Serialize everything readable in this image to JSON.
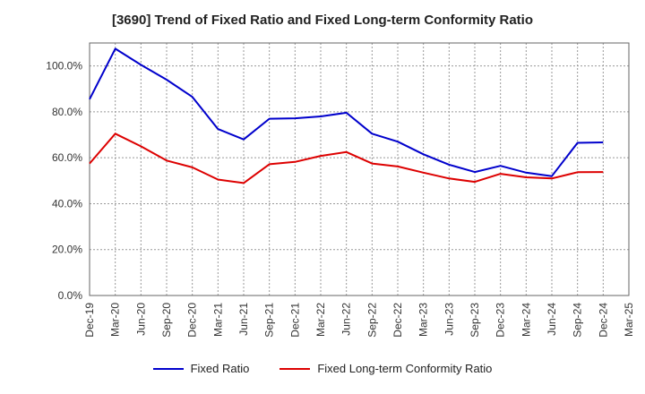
{
  "chart_data": {
    "type": "line",
    "title": "[3690]  Trend of Fixed Ratio and Fixed Long-term Conformity Ratio",
    "x": [
      "Dec-19",
      "Mar-20",
      "Jun-20",
      "Sep-20",
      "Dec-20",
      "Mar-21",
      "Jun-21",
      "Sep-21",
      "Dec-21",
      "Mar-22",
      "Jun-22",
      "Sep-22",
      "Dec-22",
      "Mar-23",
      "Jun-23",
      "Sep-23",
      "Dec-23",
      "Mar-24",
      "Jun-24",
      "Sep-24",
      "Dec-24",
      "Mar-25"
    ],
    "series": [
      {
        "name": "Fixed Ratio",
        "color": "#0000cc",
        "values": [
          85.5,
          107.5,
          100.5,
          94.0,
          86.5,
          72.5,
          68.0,
          77.0,
          77.2,
          78.0,
          79.6,
          70.5,
          67.0,
          61.5,
          57.0,
          53.8,
          56.5,
          53.5,
          52.0,
          66.5,
          66.7,
          null
        ]
      },
      {
        "name": "Fixed Long-term Conformity Ratio",
        "color": "#dd0000",
        "values": [
          57.5,
          70.5,
          65.0,
          58.8,
          55.8,
          50.5,
          49.0,
          57.2,
          58.2,
          60.8,
          62.5,
          57.5,
          56.2,
          53.5,
          51.0,
          49.5,
          53.0,
          51.5,
          51.0,
          53.7,
          53.8,
          null
        ]
      }
    ],
    "ylim": [
      0,
      110
    ],
    "yticks": [
      "0.0%",
      "20.0%",
      "40.0%",
      "60.0%",
      "80.0%",
      "100.0%"
    ],
    "ytick_values": [
      0,
      20,
      40,
      60,
      80,
      100
    ],
    "grid": true,
    "legend_position": "bottom-center"
  }
}
